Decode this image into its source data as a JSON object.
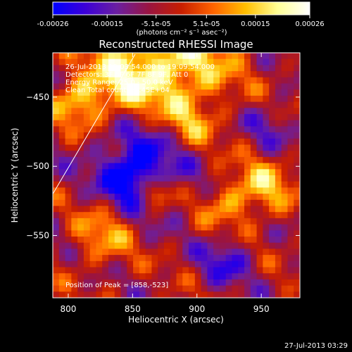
{
  "colorbar": {
    "tick_labels": [
      "-0.00026",
      "-0.00015",
      "-5.1e-05",
      "5.1e-05",
      "0.00015",
      "0.00026"
    ],
    "tick_values": [
      -0.00026,
      -0.00015,
      -5.1e-05,
      5.1e-05,
      0.00015,
      0.00026
    ],
    "range": [
      -0.00026,
      0.00026
    ],
    "units_label": "(photons cm⁻² s⁻¹ asec⁻²)",
    "colors": [
      "#0000ff",
      "#3c00d8",
      "#6b1fa0",
      "#9a1440",
      "#c81e00",
      "#ff6400",
      "#ffbe00",
      "#ffff96",
      "#ffffff"
    ]
  },
  "chart_data": {
    "type": "heatmap",
    "title": "Reconstructed RHESSI Image",
    "xlabel": "Heliocentric X (arcsec)",
    "ylabel": "Heliocentric Y (arcsec)",
    "xlim": [
      788,
      980
    ],
    "ylim": [
      -595,
      -418
    ],
    "x_ticks": [
      800,
      850,
      900,
      950
    ],
    "y_ticks": [
      -450,
      -500,
      -550
    ],
    "x_tick_labels": [
      "800",
      "850",
      "900",
      "950"
    ],
    "y_tick_labels": [
      "−450",
      "−500",
      "−550"
    ],
    "annotations": [
      "26-Jul-2013 19:03:54.000 to 19:09:54.000",
      "Detectors: 3F 5F 6F 7F 8F 9F, Att 0",
      "Energy Range: 25.0 - 50.0 keV",
      "Clean    Total counts: 1.45E+04"
    ],
    "peak_label": "Position of Peak = [858,-523]",
    "peak_position": [
      858,
      -523
    ],
    "limb_line": [
      [
        788,
        -520
      ],
      [
        852,
        -419
      ]
    ],
    "grid": false
  },
  "footer": {
    "timestamp": "27-Jul-2013 03:29"
  }
}
